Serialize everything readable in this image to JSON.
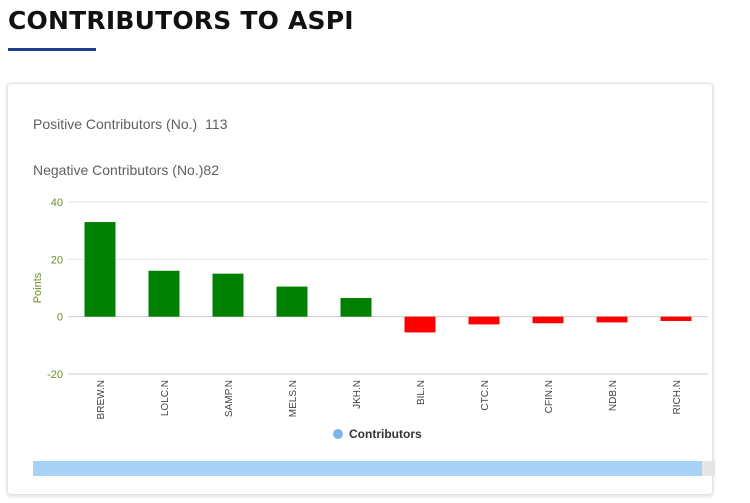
{
  "page": {
    "title": "CONTRIBUTORS TO ASPI"
  },
  "stats": {
    "positive_label": "Positive Contributors (No.)",
    "positive_value": "113",
    "negative_label": "Negative Contributors (No.)",
    "negative_value": "82"
  },
  "colors": {
    "positive": "#008000",
    "negative": "#ff0000",
    "axis_text": "#6b8e23",
    "legend_marker": "#7cb5ec",
    "title_underline": "#1f3f91"
  },
  "chart_data": {
    "type": "bar",
    "title": "",
    "xlabel": "",
    "ylabel": "Points",
    "ylim": [
      -20,
      40
    ],
    "yticks": [
      -20,
      0,
      20,
      40
    ],
    "categories": [
      "BREW.N",
      "LOLC.N",
      "SAMP.N",
      "MELS.N",
      "JKH.N",
      "BIL.N",
      "CTC.N",
      "CFIN.N",
      "NDB.N",
      "RICH.N"
    ],
    "series": [
      {
        "name": "Contributors",
        "values": [
          33,
          16,
          15,
          10.5,
          6.5,
          -5.5,
          -2.7,
          -2.3,
          -2,
          -1.5
        ]
      }
    ],
    "legend": {
      "position": "bottom-center",
      "entries": [
        "Contributors"
      ]
    }
  }
}
